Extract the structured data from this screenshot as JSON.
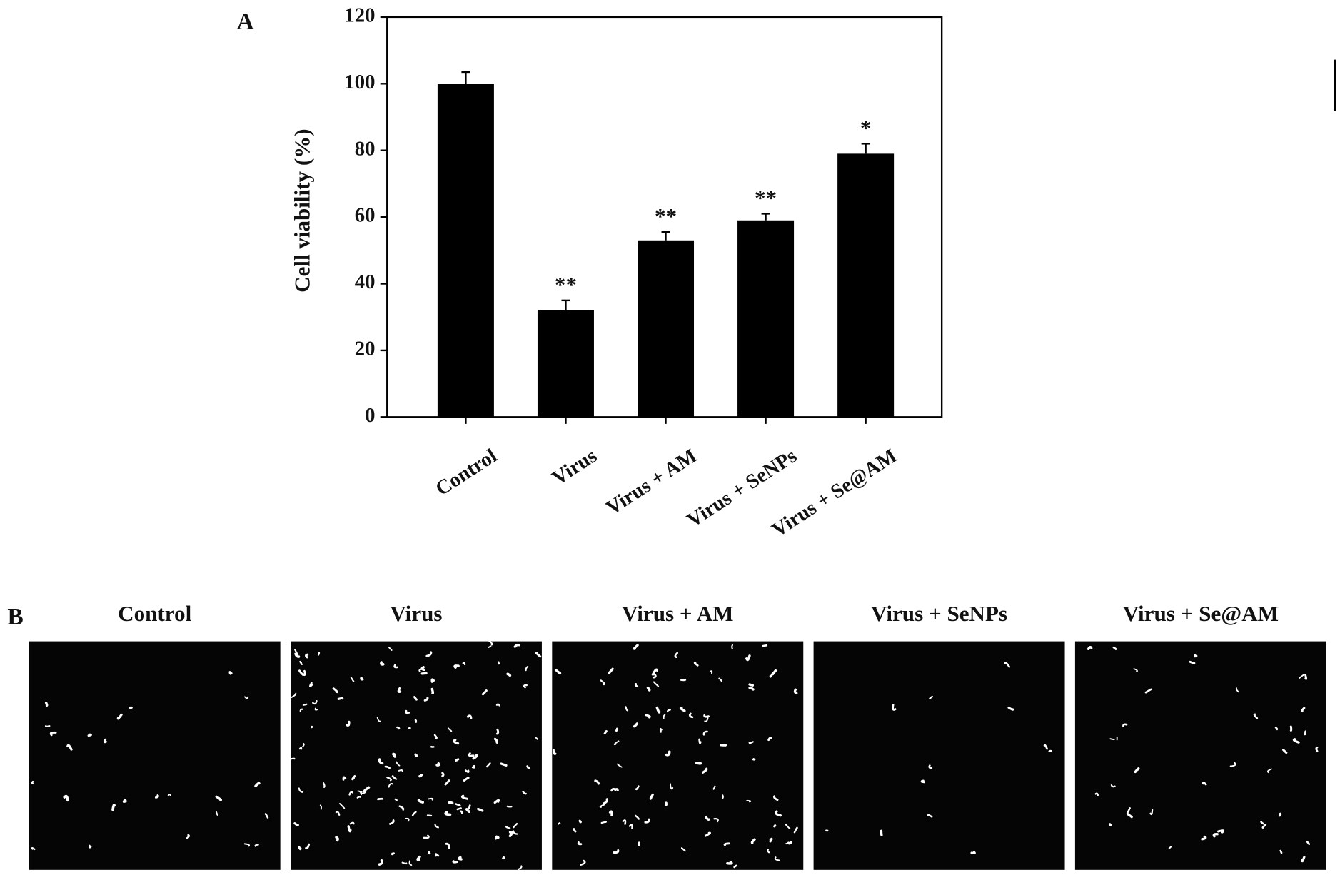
{
  "chart_data": {
    "type": "bar",
    "panel_label": "A",
    "ylabel": "Cell viability (%)",
    "categories": [
      "Control",
      "Virus",
      "Virus + AM",
      "Virus + SeNPs",
      "Virus + Se@AM"
    ],
    "values": [
      100,
      32,
      53,
      59,
      79
    ],
    "errors": [
      3.5,
      3,
      2.5,
      2,
      3
    ],
    "annotations": [
      null,
      "**",
      "**",
      "**",
      "*"
    ],
    "color": "#000000",
    "ylim": [
      0,
      120
    ],
    "yticks": [
      0,
      20,
      40,
      60,
      80,
      100,
      120
    ],
    "grid": false
  },
  "panel_b": {
    "label": "B",
    "titles": [
      "Control",
      "Virus",
      "Virus + AM",
      "Virus + SeNPs",
      "Virus + Se@AM"
    ]
  }
}
